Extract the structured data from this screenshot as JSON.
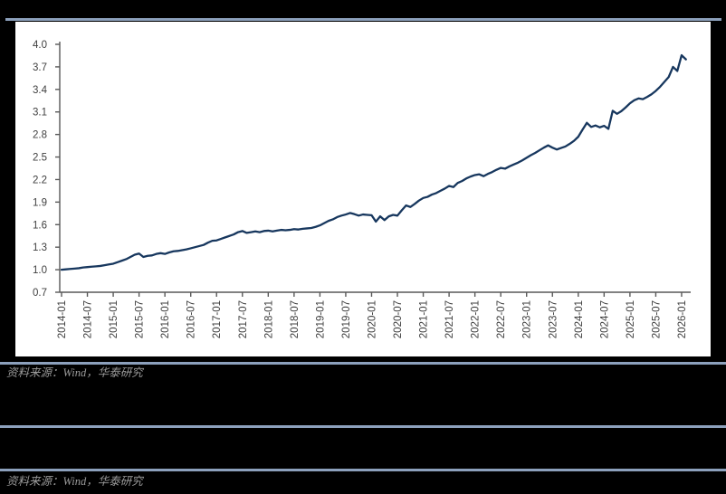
{
  "page": {
    "background": "#000000",
    "rule_color": "#8ca0bc",
    "panel_background": "#ffffff"
  },
  "figure1": {
    "caption": "资料来源：Wind，华泰研究"
  },
  "figure2": {
    "caption": "资料来源：Wind，华泰研究"
  },
  "chart_data": {
    "type": "line",
    "title": "",
    "xlabel": "",
    "ylabel": "",
    "grid": false,
    "legend": "none",
    "ylim": [
      0.7,
      4.0
    ],
    "y_tick_step": 0.3,
    "y_tick_labels": [
      "4.0",
      "3.7",
      "3.4",
      "3.1",
      "2.8",
      "2.5",
      "2.2",
      "1.9",
      "1.6",
      "1.3",
      "1.0",
      "0.7"
    ],
    "x_tick_labels": [
      "2014-01",
      "2014-07",
      "2015-01",
      "2015-07",
      "2016-01",
      "2016-07",
      "2017-01",
      "2017-07",
      "2018-01",
      "2018-07",
      "2019-01",
      "2019-07",
      "2020-01",
      "2020-07",
      "2021-01",
      "2021-07",
      "2022-01",
      "2022-07",
      "2023-01",
      "2023-07",
      "2024-01",
      "2024-07",
      "2025-01",
      "2025-07",
      "2026-01"
    ],
    "x_monthly_start": "2014-01",
    "axis_color": "#595959",
    "tick_label_color": "#3f3f3f",
    "series": [
      {
        "color": "#17375E",
        "stroke_width": 2.3,
        "values": [
          1.0,
          1.005,
          1.01,
          1.015,
          1.02,
          1.03,
          1.035,
          1.04,
          1.045,
          1.05,
          1.06,
          1.07,
          1.08,
          1.1,
          1.12,
          1.14,
          1.17,
          1.2,
          1.215,
          1.17,
          1.185,
          1.19,
          1.21,
          1.22,
          1.21,
          1.23,
          1.245,
          1.25,
          1.26,
          1.27,
          1.285,
          1.3,
          1.315,
          1.33,
          1.36,
          1.385,
          1.39,
          1.41,
          1.43,
          1.45,
          1.47,
          1.5,
          1.515,
          1.49,
          1.5,
          1.51,
          1.5,
          1.515,
          1.52,
          1.51,
          1.52,
          1.53,
          1.525,
          1.53,
          1.54,
          1.535,
          1.545,
          1.55,
          1.555,
          1.57,
          1.59,
          1.62,
          1.65,
          1.67,
          1.7,
          1.72,
          1.735,
          1.755,
          1.74,
          1.72,
          1.735,
          1.73,
          1.725,
          1.64,
          1.71,
          1.66,
          1.71,
          1.73,
          1.72,
          1.79,
          1.855,
          1.835,
          1.875,
          1.92,
          1.955,
          1.97,
          2.0,
          2.02,
          2.05,
          2.08,
          2.115,
          2.1,
          2.155,
          2.18,
          2.215,
          2.24,
          2.26,
          2.27,
          2.245,
          2.275,
          2.3,
          2.33,
          2.355,
          2.345,
          2.375,
          2.4,
          2.425,
          2.455,
          2.49,
          2.525,
          2.555,
          2.59,
          2.625,
          2.655,
          2.625,
          2.6,
          2.62,
          2.64,
          2.675,
          2.715,
          2.77,
          2.865,
          2.955,
          2.9,
          2.92,
          2.895,
          2.915,
          2.875,
          3.115,
          3.075,
          3.11,
          3.16,
          3.215,
          3.255,
          3.28,
          3.27,
          3.3,
          3.335,
          3.38,
          3.435,
          3.5,
          3.565,
          3.7,
          3.645,
          3.855,
          3.8
        ]
      }
    ]
  }
}
